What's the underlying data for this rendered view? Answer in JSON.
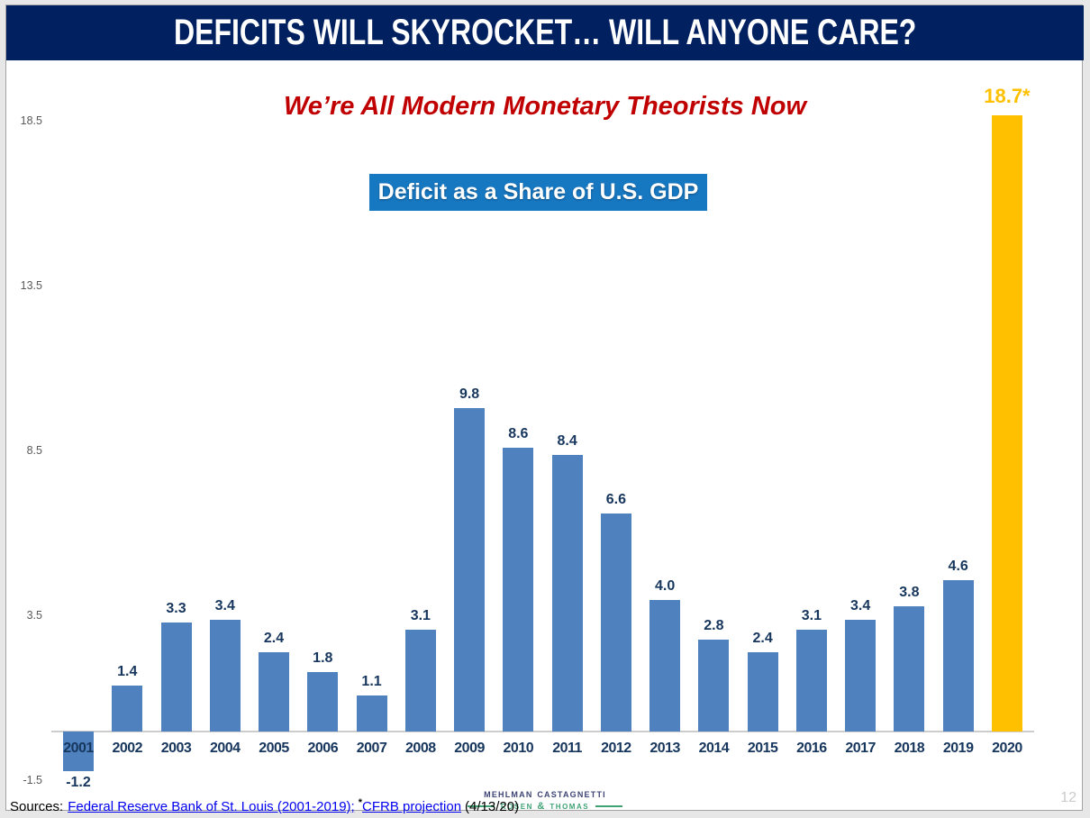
{
  "slide": {
    "header_title": "DEFICITS WILL SKYROCKET… WILL ANYONE CARE?",
    "subtitle": "We’re All Modern Monetary Theorists Now",
    "page_number": "12"
  },
  "chart_data": {
    "type": "bar",
    "title": "Deficit as a Share of U.S. GDP",
    "categories": [
      "2001",
      "2002",
      "2003",
      "2004",
      "2005",
      "2006",
      "2007",
      "2008",
      "2009",
      "2010",
      "2011",
      "2012",
      "2013",
      "2014",
      "2015",
      "2016",
      "2017",
      "2018",
      "2019",
      "2020"
    ],
    "values": [
      -1.2,
      1.4,
      3.3,
      3.4,
      2.4,
      1.8,
      1.1,
      3.1,
      9.8,
      8.6,
      8.4,
      6.6,
      4.0,
      2.8,
      2.4,
      3.1,
      3.4,
      3.8,
      4.6,
      18.7
    ],
    "value_labels": [
      "-1.2",
      "1.4",
      "3.3",
      "3.4",
      "2.4",
      "1.8",
      "1.1",
      "3.1",
      "9.8",
      "8.6",
      "8.4",
      "6.6",
      "4.0",
      "2.8",
      "2.4",
      "3.1",
      "3.4",
      "3.8",
      "4.6",
      "18.7*"
    ],
    "highlight_category": "2020",
    "y_ticks": [
      18.5,
      13.5,
      8.5,
      3.5,
      -1.5
    ],
    "ylim": [
      -1.5,
      19.5
    ],
    "grid": false,
    "legend": false,
    "colors": {
      "bar": "#4E81BD",
      "highlight": "#FFC000",
      "data_label": "#17365D",
      "highlight_label": "#FFC000",
      "axis_tick_label": "#595959"
    }
  },
  "footer": {
    "sources_label": "Sources:",
    "source_link_1": "Federal Reserve Bank of St. Louis (2001-2019);",
    "projection_asterisk": "*",
    "source_link_2": "CFRB projection",
    "source_date": "(4/13/20)"
  },
  "logo": {
    "line1": "Mehlman Castagnetti",
    "line2": "Rosen & Thomas"
  },
  "theme": {
    "header_bg": "#002060",
    "subtitle_color": "#C00000",
    "chart_title_bg": "#1778C2",
    "link_color": "#0000EE"
  }
}
